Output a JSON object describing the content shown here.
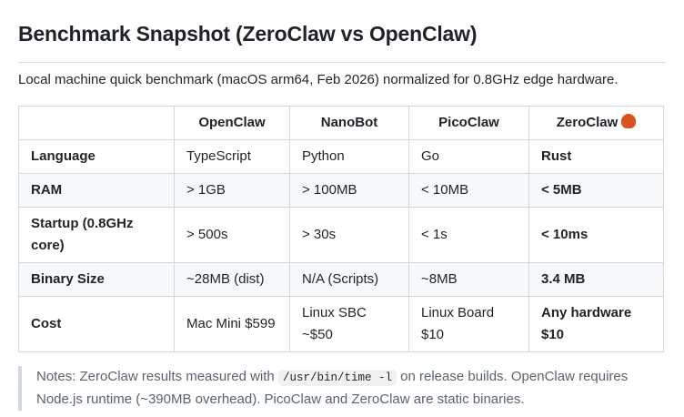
{
  "title": "Benchmark Snapshot (ZeroClaw vs OpenClaw)",
  "intro": "Local machine quick benchmark (macOS arm64, Feb 2026) normalized for 0.8GHz edge hardware.",
  "table": {
    "headers": [
      "",
      "OpenClaw",
      "NanoBot",
      "PicoClaw",
      "ZeroClaw"
    ],
    "rows": [
      [
        "Language",
        "TypeScript",
        "Python",
        "Go",
        "Rust"
      ],
      [
        "RAM",
        "> 1GB",
        "> 100MB",
        "< 10MB",
        "< 5MB"
      ],
      [
        "Startup (0.8GHz core)",
        "> 500s",
        "> 30s",
        "< 1s",
        "< 10ms"
      ],
      [
        "Binary Size",
        "~28MB (dist)",
        "N/A (Scripts)",
        "~8MB",
        "3.4 MB"
      ],
      [
        "Cost",
        "Mac Mini $599",
        "Linux SBC ~$50",
        "Linux Board $10",
        "Any hardware $10"
      ]
    ]
  },
  "notes": {
    "before": "Notes: ZeroClaw results measured with ",
    "code": "/usr/bin/time -l",
    "after": " on release builds. OpenClaw requires Node.js runtime (~390MB overhead). PicoClaw and ZeroClaw are static binaries."
  }
}
